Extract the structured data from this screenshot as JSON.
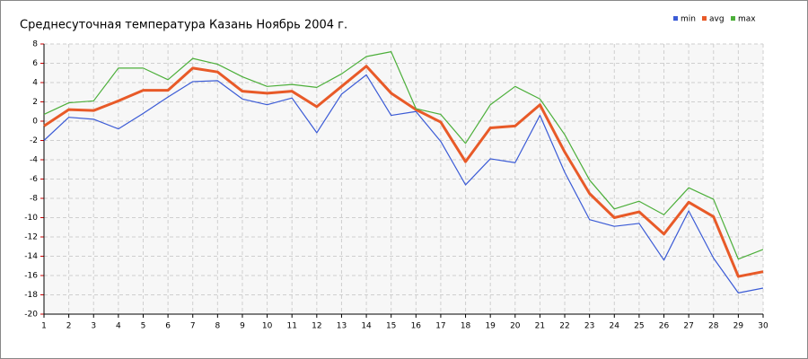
{
  "chart_data": {
    "type": "line",
    "title": "Среднесуточная температура Казань  Ноябрь 2004 г.",
    "x": [
      1,
      2,
      3,
      4,
      5,
      6,
      7,
      8,
      9,
      10,
      11,
      12,
      13,
      14,
      15,
      16,
      17,
      18,
      19,
      20,
      21,
      22,
      23,
      24,
      25,
      26,
      27,
      28,
      29,
      30
    ],
    "xlim": [
      1,
      30
    ],
    "xticks": [
      1,
      2,
      3,
      4,
      5,
      6,
      7,
      8,
      9,
      10,
      11,
      12,
      13,
      14,
      15,
      16,
      17,
      18,
      19,
      20,
      21,
      22,
      23,
      24,
      25,
      26,
      27,
      28,
      29,
      30
    ],
    "ylim": [
      -20,
      8
    ],
    "yticks": [
      -20,
      -18,
      -16,
      -14,
      -12,
      -10,
      -8,
      -6,
      -4,
      -2,
      0,
      2,
      4,
      6,
      8
    ],
    "grid": true,
    "legend": "top-right",
    "series": [
      {
        "name": "min",
        "color": "#3b5bd6",
        "values": [
          -2.0,
          0.4,
          0.2,
          -0.8,
          0.8,
          2.5,
          4.1,
          4.2,
          2.3,
          1.7,
          2.4,
          -1.2,
          2.8,
          4.8,
          0.6,
          1.0,
          -2.1,
          -6.6,
          -3.9,
          -4.3,
          0.6,
          -5.3,
          -10.2,
          -10.9,
          -10.6,
          -14.4,
          -9.3,
          -14.2,
          -17.8,
          -17.3
        ]
      },
      {
        "name": "avg",
        "color": "#e85a28",
        "values": [
          -0.5,
          1.2,
          1.1,
          2.1,
          3.2,
          3.2,
          5.5,
          5.1,
          3.1,
          2.9,
          3.1,
          1.5,
          3.6,
          5.7,
          2.9,
          1.2,
          -0.1,
          -4.2,
          -0.7,
          -0.5,
          1.7,
          -3.2,
          -7.5,
          -10.0,
          -9.4,
          -11.7,
          -8.4,
          -9.9,
          -16.1,
          -15.6
        ]
      },
      {
        "name": "max",
        "color": "#4caf3a",
        "values": [
          0.7,
          1.9,
          2.1,
          5.5,
          5.5,
          4.3,
          6.5,
          5.9,
          4.6,
          3.6,
          3.8,
          3.5,
          4.9,
          6.7,
          7.2,
          1.3,
          0.7,
          -2.3,
          1.7,
          3.6,
          2.3,
          -1.4,
          -6.1,
          -9.1,
          -8.3,
          -9.7,
          -6.9,
          -8.1,
          -14.3,
          -13.3
        ]
      }
    ]
  }
}
